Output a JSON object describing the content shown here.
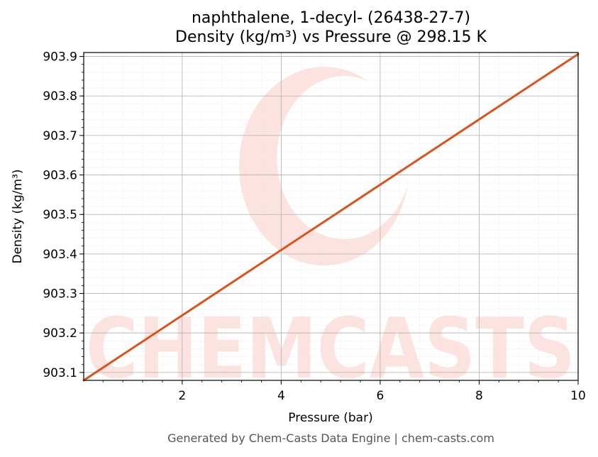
{
  "chart_data": {
    "type": "line",
    "title": "naphthalene, 1-decyl- (26438-27-7)",
    "subtitle": "Density (kg/m³) vs Pressure @ 298.15 K",
    "xlabel": "Pressure (bar)",
    "ylabel": "Density (kg/m³)",
    "xlim": [
      0.01,
      10
    ],
    "ylim": [
      903.08,
      903.91
    ],
    "x_ticks": [
      2,
      4,
      6,
      8,
      10
    ],
    "y_ticks": [
      903.1,
      903.2,
      903.3,
      903.4,
      903.5,
      903.6,
      903.7,
      903.8,
      903.9
    ],
    "grid": true,
    "series": [
      {
        "color": "#d9531e",
        "x": [
          0.01,
          10
        ],
        "y": [
          903.08,
          903.906
        ]
      }
    ]
  },
  "footer": "Generated by Chem-Casts Data Engine | chem-casts.com",
  "watermark": {
    "text": "CHEMCASTS",
    "color": "#fde3e0"
  }
}
